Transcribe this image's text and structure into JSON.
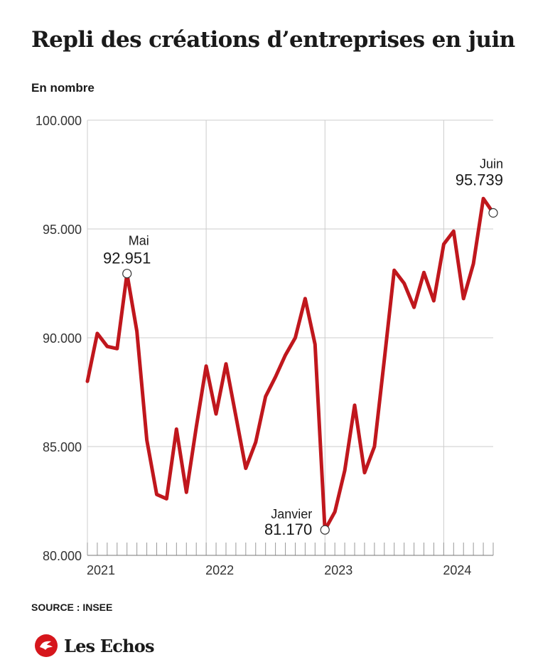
{
  "header": {
    "title": "Repli des créations d’entreprises en juin",
    "unit_label": "En nombre"
  },
  "footer": {
    "source": "SOURCE : INSEE",
    "brand": "Les Echos",
    "logo_icon": "les-echos-logo-icon"
  },
  "colors": {
    "line": "#c0171d",
    "grid": "#cccccc",
    "logo": "#d6161c"
  },
  "chart_data": {
    "type": "line",
    "title": "Repli des créations d’entreprises en juin",
    "ylabel": "En nombre",
    "ylim": [
      80000,
      100000
    ],
    "yticks": [
      80000,
      85000,
      90000,
      95000,
      100000
    ],
    "ytick_labels": [
      "80.000",
      "85.000",
      "90.000",
      "95.000",
      "100.000"
    ],
    "xticks": [
      {
        "label": "2021",
        "date": "2021-01"
      },
      {
        "label": "2022",
        "date": "2022-01"
      },
      {
        "label": "2023",
        "date": "2023-01"
      },
      {
        "label": "2024",
        "date": "2024-01"
      }
    ],
    "xlim": [
      "2021-01",
      "2024-06"
    ],
    "grid": true,
    "series": [
      {
        "x": [
          "2021-01",
          "2021-02",
          "2021-03",
          "2021-04",
          "2021-05",
          "2021-06",
          "2021-07",
          "2021-08",
          "2021-09",
          "2021-10",
          "2021-11",
          "2021-12",
          "2022-01",
          "2022-02",
          "2022-03",
          "2022-04",
          "2022-05",
          "2022-06",
          "2022-07",
          "2022-08",
          "2022-09",
          "2022-10",
          "2022-11",
          "2022-12",
          "2023-01",
          "2023-02",
          "2023-03",
          "2023-04",
          "2023-05",
          "2023-06",
          "2023-07",
          "2023-08",
          "2023-09",
          "2023-10",
          "2023-11",
          "2023-12",
          "2024-01",
          "2024-02",
          "2024-03",
          "2024-04",
          "2024-05",
          "2024-06"
        ],
        "values": [
          88000,
          90200,
          89600,
          89500,
          92951,
          90300,
          85300,
          82800,
          82600,
          85800,
          82900,
          85900,
          88700,
          86500,
          88800,
          86400,
          84000,
          85200,
          87300,
          88200,
          89200,
          90000,
          91800,
          89700,
          81170,
          82000,
          83900,
          86900,
          83800,
          85000,
          89000,
          93100,
          92500,
          91400,
          93000,
          91700,
          94300,
          94900,
          91800,
          93400,
          96400,
          95739
        ]
      }
    ],
    "annotations": [
      {
        "x": "2021-05",
        "value": 92951,
        "label": "Mai",
        "value_label": "92.951"
      },
      {
        "x": "2023-01",
        "value": 81170,
        "label": "Janvier",
        "value_label": "81.170"
      },
      {
        "x": "2024-06",
        "value": 95739,
        "label": "Juin",
        "value_label": "95.739"
      }
    ]
  }
}
